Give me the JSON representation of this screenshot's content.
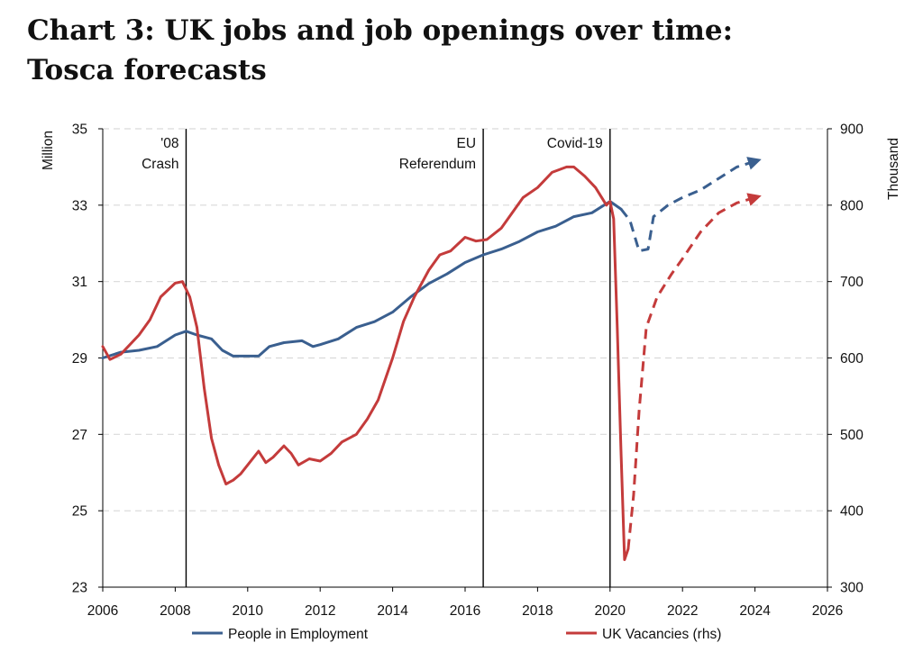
{
  "title": {
    "line1": "Chart 3: UK jobs and job openings over time:",
    "line2": "Tosca forecasts"
  },
  "chart_data": {
    "type": "line",
    "ylabel": "Million",
    "y2label": "Thousand",
    "xlim": [
      2006,
      2026
    ],
    "ylim": [
      23,
      35
    ],
    "y2lim": [
      300,
      900
    ],
    "x_ticks": [
      2006,
      2008,
      2010,
      2012,
      2014,
      2016,
      2018,
      2020,
      2022,
      2024,
      2026
    ],
    "y_ticks": [
      23,
      25,
      27,
      29,
      31,
      33,
      35
    ],
    "y2_ticks": [
      300,
      400,
      500,
      600,
      700,
      800,
      900
    ],
    "grid": "horizontal dashed",
    "colors": {
      "employment": "#3a5f8f",
      "vacancies": "#c43b3b",
      "events": "#000000",
      "grid": "#d9d9d9"
    },
    "events": [
      {
        "x": 2008.3,
        "label": [
          "'08",
          "Crash"
        ]
      },
      {
        "x": 2016.5,
        "label": [
          "EU",
          "Referendum"
        ]
      },
      {
        "x": 2020.0,
        "label": [
          "Covid-19"
        ]
      }
    ],
    "legend": [
      {
        "label": "People in Employment",
        "series": "employment"
      },
      {
        "label": "UK Vacancies (rhs)",
        "series": "vacancies"
      }
    ],
    "series": [
      {
        "name": "People in Employment",
        "key": "employment",
        "axis": "left",
        "values": [
          [
            2006.0,
            29.0
          ],
          [
            2006.5,
            29.15
          ],
          [
            2007.0,
            29.2
          ],
          [
            2007.5,
            29.3
          ],
          [
            2008.0,
            29.6
          ],
          [
            2008.3,
            29.7
          ],
          [
            2008.6,
            29.6
          ],
          [
            2009.0,
            29.5
          ],
          [
            2009.3,
            29.2
          ],
          [
            2009.6,
            29.05
          ],
          [
            2010.0,
            29.05
          ],
          [
            2010.3,
            29.05
          ],
          [
            2010.6,
            29.3
          ],
          [
            2011.0,
            29.4
          ],
          [
            2011.5,
            29.45
          ],
          [
            2011.8,
            29.3
          ],
          [
            2012.0,
            29.35
          ],
          [
            2012.5,
            29.5
          ],
          [
            2013.0,
            29.8
          ],
          [
            2013.5,
            29.95
          ],
          [
            2014.0,
            30.2
          ],
          [
            2014.5,
            30.6
          ],
          [
            2015.0,
            30.95
          ],
          [
            2015.5,
            31.2
          ],
          [
            2016.0,
            31.5
          ],
          [
            2016.5,
            31.7
          ],
          [
            2017.0,
            31.85
          ],
          [
            2017.5,
            32.05
          ],
          [
            2018.0,
            32.3
          ],
          [
            2018.5,
            32.45
          ],
          [
            2019.0,
            32.7
          ],
          [
            2019.5,
            32.8
          ],
          [
            2020.0,
            33.1
          ],
          [
            2020.3,
            32.9
          ]
        ]
      },
      {
        "name": "People in Employment forecast",
        "key": "employment",
        "axis": "left",
        "dashed": true,
        "values": [
          [
            2020.3,
            32.9
          ],
          [
            2020.55,
            32.6
          ],
          [
            2020.8,
            31.8
          ],
          [
            2021.05,
            31.85
          ],
          [
            2021.2,
            32.7
          ],
          [
            2021.6,
            33.0
          ],
          [
            2022.0,
            33.2
          ],
          [
            2022.5,
            33.4
          ],
          [
            2023.0,
            33.7
          ],
          [
            2023.5,
            34.0
          ],
          [
            2024.0,
            34.15
          ]
        ]
      },
      {
        "name": "UK Vacancies (rhs)",
        "key": "vacancies",
        "axis": "right",
        "values": [
          [
            2006.0,
            615
          ],
          [
            2006.2,
            598
          ],
          [
            2006.5,
            605
          ],
          [
            2007.0,
            630
          ],
          [
            2007.3,
            650
          ],
          [
            2007.6,
            680
          ],
          [
            2008.0,
            698
          ],
          [
            2008.2,
            700
          ],
          [
            2008.4,
            680
          ],
          [
            2008.6,
            640
          ],
          [
            2008.8,
            560
          ],
          [
            2009.0,
            495
          ],
          [
            2009.2,
            460
          ],
          [
            2009.4,
            435
          ],
          [
            2009.6,
            440
          ],
          [
            2009.8,
            448
          ],
          [
            2010.0,
            460
          ],
          [
            2010.3,
            478
          ],
          [
            2010.5,
            463
          ],
          [
            2010.7,
            470
          ],
          [
            2011.0,
            485
          ],
          [
            2011.2,
            475
          ],
          [
            2011.4,
            460
          ],
          [
            2011.7,
            468
          ],
          [
            2012.0,
            465
          ],
          [
            2012.3,
            475
          ],
          [
            2012.6,
            490
          ],
          [
            2013.0,
            500
          ],
          [
            2013.3,
            520
          ],
          [
            2013.6,
            545
          ],
          [
            2014.0,
            600
          ],
          [
            2014.3,
            648
          ],
          [
            2014.6,
            680
          ],
          [
            2015.0,
            715
          ],
          [
            2015.3,
            735
          ],
          [
            2015.6,
            740
          ],
          [
            2016.0,
            758
          ],
          [
            2016.3,
            753
          ],
          [
            2016.6,
            755
          ],
          [
            2017.0,
            770
          ],
          [
            2017.3,
            790
          ],
          [
            2017.6,
            810
          ],
          [
            2018.0,
            823
          ],
          [
            2018.4,
            843
          ],
          [
            2018.8,
            850
          ],
          [
            2019.0,
            850
          ],
          [
            2019.3,
            838
          ],
          [
            2019.6,
            823
          ],
          [
            2019.9,
            800
          ],
          [
            2020.0,
            805
          ],
          [
            2020.1,
            782
          ],
          [
            2020.2,
            640
          ],
          [
            2020.3,
            480
          ],
          [
            2020.4,
            336
          ],
          [
            2020.5,
            350
          ]
        ]
      },
      {
        "name": "UK Vacancies forecast",
        "key": "vacancies",
        "axis": "right",
        "dashed": true,
        "values": [
          [
            2020.5,
            350
          ],
          [
            2020.65,
            420
          ],
          [
            2020.8,
            530
          ],
          [
            2021.0,
            640
          ],
          [
            2021.3,
            680
          ],
          [
            2021.7,
            710
          ],
          [
            2022.0,
            730
          ],
          [
            2022.5,
            765
          ],
          [
            2023.0,
            790
          ],
          [
            2023.5,
            803
          ],
          [
            2024.0,
            810
          ]
        ]
      }
    ]
  }
}
